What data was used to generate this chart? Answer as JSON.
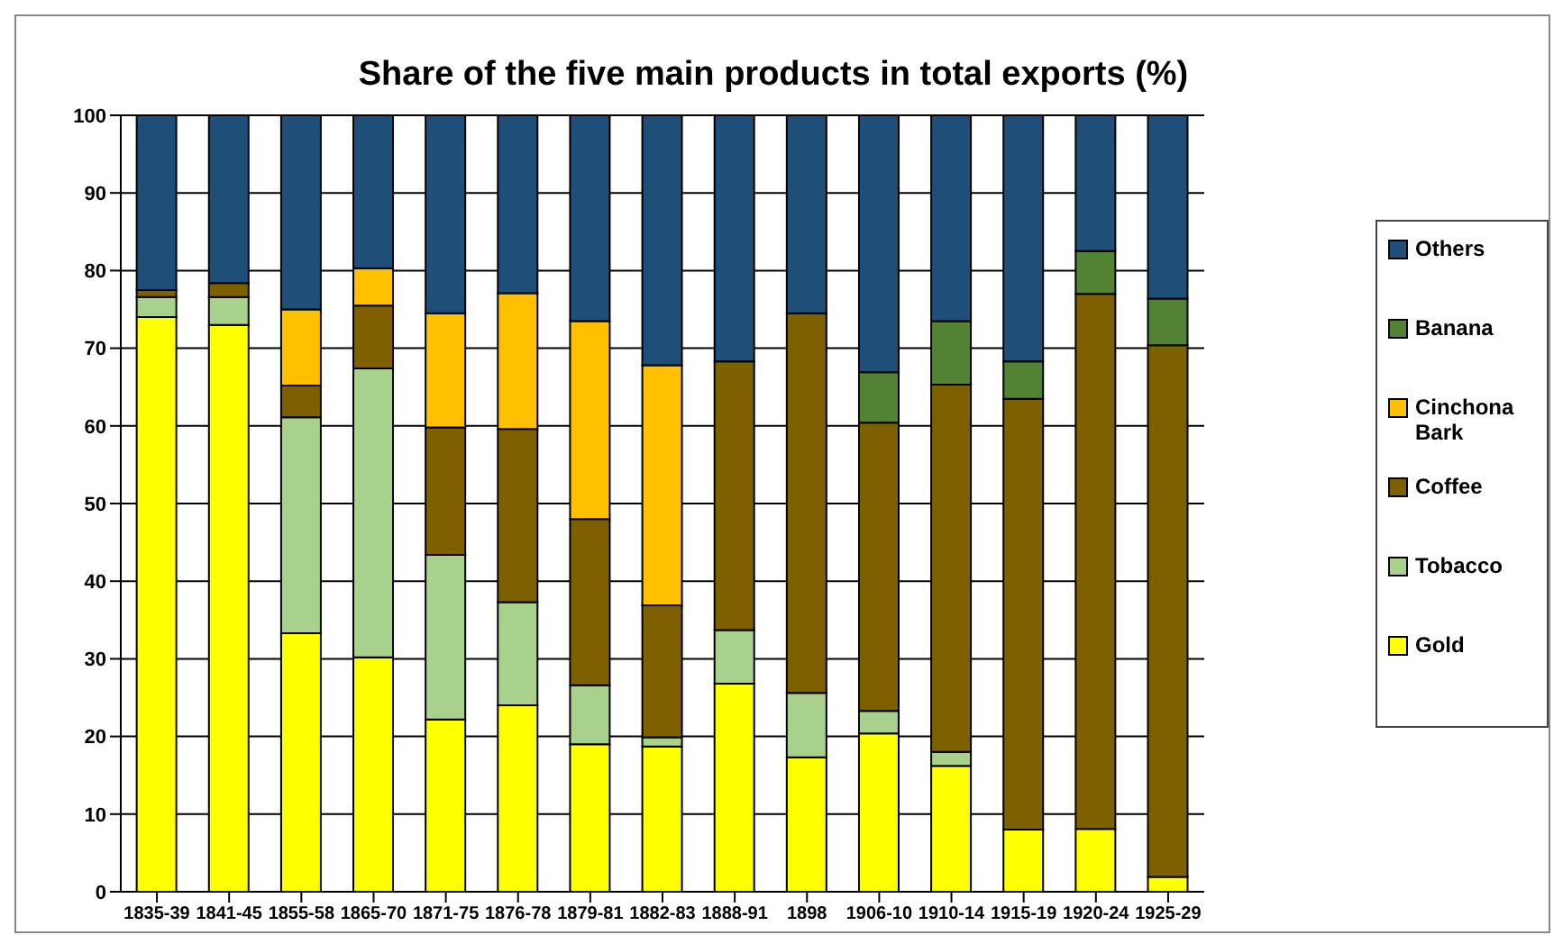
{
  "chart_data": {
    "type": "bar",
    "title": "Share of the five main products in total exports (%)",
    "stacked": true,
    "grid": "y",
    "legend": "right",
    "ylim": [
      0,
      100
    ],
    "yticks": [
      0,
      10,
      20,
      30,
      40,
      50,
      60,
      70,
      80,
      90,
      100
    ],
    "categories": [
      "1835-39",
      "1841-45",
      "1855-58",
      "1865-70",
      "1871-75",
      "1876-78",
      "1879-81",
      "1882-83",
      "1888-91",
      "1898",
      "1906-10",
      "1910-14",
      "1915-19",
      "1920-24",
      "1925-29"
    ],
    "series": [
      {
        "name": "Gold",
        "color": "#ffff00",
        "values": [
          74,
          73,
          33.3,
          30.2,
          22.2,
          24,
          19,
          18.7,
          26.8,
          17.3,
          20.4,
          16.2,
          8,
          8.1,
          1.9
        ]
      },
      {
        "name": "Tobacco",
        "color": "#a9d18e",
        "values": [
          2.6,
          3.6,
          27.8,
          37.2,
          21.2,
          13.3,
          7.6,
          1.2,
          6.9,
          8.3,
          2.9,
          1.8,
          0,
          0,
          0
        ]
      },
      {
        "name": "Coffee",
        "color": "#7f6000",
        "values": [
          0.9,
          1.8,
          4.1,
          8.1,
          16.4,
          22.3,
          21.4,
          17,
          34.6,
          48.9,
          37.1,
          47.3,
          55.5,
          68.9,
          68.5
        ]
      },
      {
        "name": "Cinchona Bark",
        "color": "#ffc000",
        "values": [
          0,
          0,
          9.8,
          4.8,
          14.7,
          17.5,
          25.5,
          30.9,
          0,
          0,
          0,
          0,
          0,
          0,
          0
        ]
      },
      {
        "name": "Banana",
        "color": "#548235",
        "values": [
          0,
          0,
          0,
          0,
          0,
          0,
          0,
          0,
          0,
          0,
          6.5,
          8.2,
          4.8,
          5.5,
          6
        ]
      },
      {
        "name": "Others",
        "color": "#1f4e79",
        "values": [
          22.5,
          21.6,
          25,
          19.7,
          25.5,
          22.9,
          26.5,
          32.2,
          31.7,
          25.5,
          33.1,
          26.5,
          31.7,
          17.5,
          23.6
        ]
      }
    ]
  }
}
